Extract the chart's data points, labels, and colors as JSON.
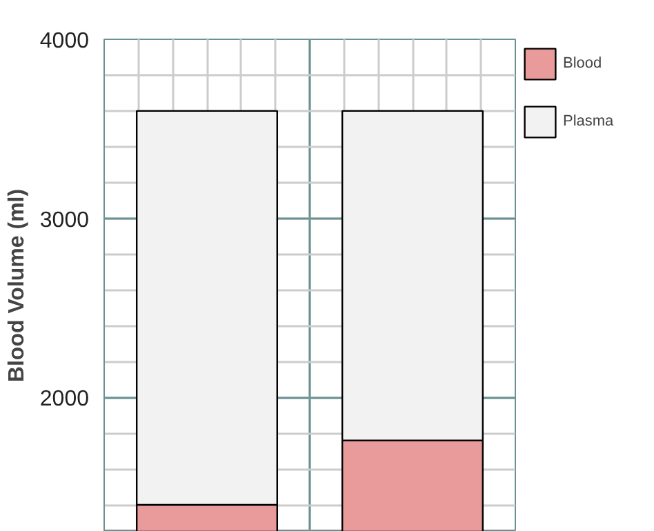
{
  "chart_data": {
    "type": "bar",
    "stacked": true,
    "ylabel": "Blood Volume (ml)",
    "categories": [
      null,
      null
    ],
    "series": [
      {
        "name": "Blood",
        "color": "#e99a9a",
        "values": [
          1400,
          1760
        ]
      },
      {
        "name": "Plasma",
        "color": "#f2f2f2",
        "values": [
          2200,
          1840
        ]
      }
    ],
    "ylim": [
      1250,
      4000
    ],
    "yticks": [
      2000,
      3000,
      4000
    ],
    "grid": true,
    "legend": "right"
  }
}
